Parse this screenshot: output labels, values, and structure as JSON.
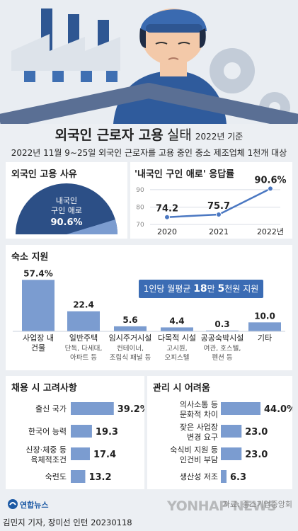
{
  "header": {
    "title_main": "외국인 근로자 고용",
    "title_sub1": "실태",
    "title_sub2": "2022년 기준",
    "subtitle": "2022년 11월 9∼25일 외국인 근로자를 고용 중인 중소 제조업체 1천개 대상"
  },
  "colors": {
    "bar": "#7b9cd0",
    "dark_blue": "#2c4f86",
    "accent": "#3b6cb4",
    "line": "#4b78c2"
  },
  "hiring_reason": {
    "title": "외국인 고용 사유",
    "label_line1": "내국인",
    "label_line2": "구인 애로",
    "value_text": "90.6%",
    "value": 90.6
  },
  "response_rate": {
    "title": "'내국인 구인 애로' 응답률",
    "chart_data": {
      "type": "line",
      "x": [
        "2020",
        "2021",
        "2022년"
      ],
      "values": [
        74.2,
        75.7,
        90.6
      ],
      "value_labels": [
        "74.2",
        "75.7",
        "90.6%"
      ],
      "y_ticks": [
        "90",
        "80",
        "70"
      ],
      "ylim": [
        70,
        92
      ]
    }
  },
  "housing": {
    "title": "숙소 지원",
    "badge_prefix": "1인당 월평균",
    "badge_num1": "18",
    "badge_mid": "만",
    "badge_num2": "5",
    "badge_suffix": "천원 지원",
    "chart_data": {
      "type": "bar",
      "values": [
        57.4,
        22.4,
        5.6,
        4.4,
        0.3,
        10.0
      ],
      "value_labels": [
        "57.4%",
        "22.4",
        "5.6",
        "4.4",
        "0.3",
        "10.0"
      ],
      "categories": [
        {
          "line1": "사업장 내",
          "line2": "건물",
          "sub1": "",
          "sub2": ""
        },
        {
          "line1": "일반주택",
          "line2": "",
          "sub1": "단독, 다세대,",
          "sub2": "아파트 등"
        },
        {
          "line1": "임시주거시설",
          "line2": "",
          "sub1": "컨테이너,",
          "sub2": "조립식 패널 등"
        },
        {
          "line1": "다목적 시설",
          "line2": "",
          "sub1": "고시원,",
          "sub2": "오피스텔"
        },
        {
          "line1": "공공숙박시설",
          "line2": "",
          "sub1": "여관, 호스텔,",
          "sub2": "펜션 등"
        },
        {
          "line1": "기타",
          "line2": "",
          "sub1": "",
          "sub2": ""
        }
      ],
      "ylim": [
        0,
        60
      ]
    }
  },
  "hiring_factors": {
    "title": "채용 시 고려사항",
    "chart_data": {
      "type": "bar",
      "orientation": "horizontal",
      "values": [
        39.2,
        19.3,
        17.4,
        13.2
      ],
      "value_labels": [
        "39.2%",
        "19.3",
        "17.4",
        "13.2"
      ],
      "categories": [
        {
          "line1": "출신 국가",
          "line2": ""
        },
        {
          "line1": "한국어 능력",
          "line2": ""
        },
        {
          "line1": "신장·체중 등",
          "line2": "육체적조건"
        },
        {
          "line1": "숙련도",
          "line2": ""
        }
      ]
    }
  },
  "management": {
    "title": "관리 시 어려움",
    "chart_data": {
      "type": "bar",
      "orientation": "horizontal",
      "values": [
        44.0,
        23.0,
        23.0,
        6.3
      ],
      "value_labels": [
        "44.0%",
        "23.0",
        "23.0",
        "6.3"
      ],
      "categories": [
        {
          "line1": "의사소통 등",
          "line2": "문화적 차이"
        },
        {
          "line1": "잦은 사업장",
          "line2": "변경 요구"
        },
        {
          "line1": "숙식비 지원 등",
          "line2": "인건비 부담"
        },
        {
          "line1": "생산성 저조",
          "line2": ""
        }
      ]
    }
  },
  "footer": {
    "logo": "연합뉴스",
    "source": "자료: 중소기업중앙회",
    "watermark": "YONHAP NEWS",
    "credit": "김민지 기자, 장미선 인턴  20230118"
  }
}
